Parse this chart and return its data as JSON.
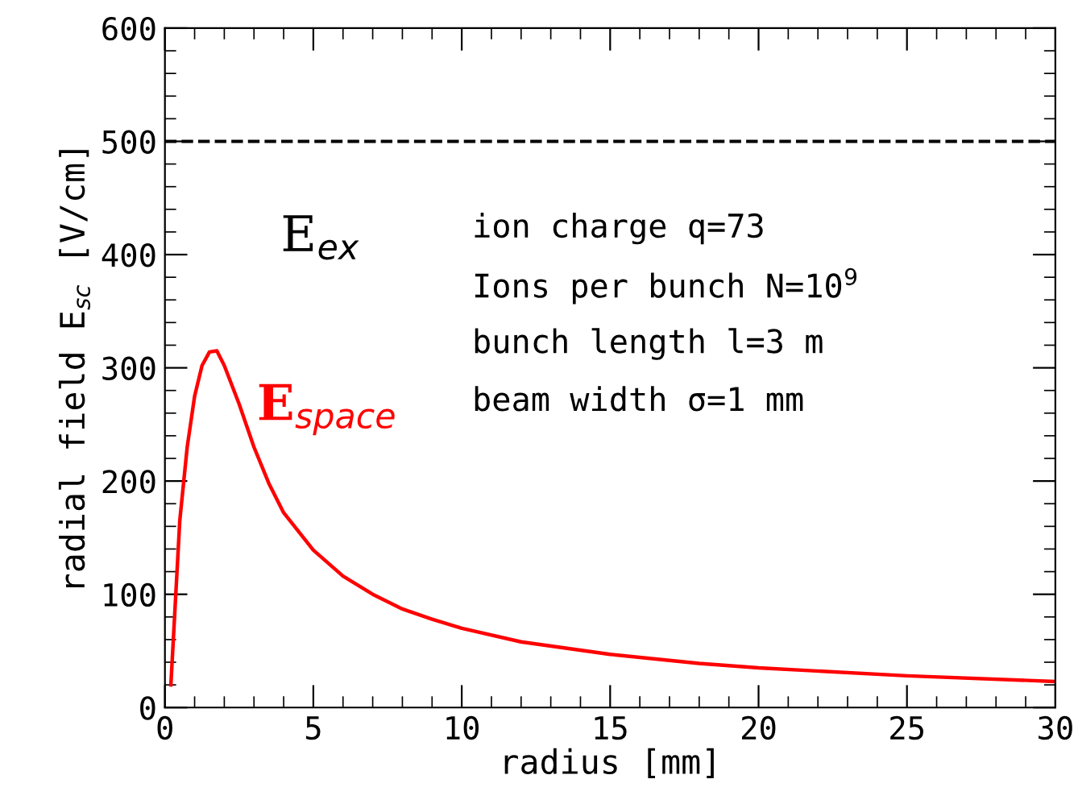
{
  "chart_data": {
    "type": "line",
    "xlabel": "radius [mm]",
    "ylabel": "radial field E$_{sc}$ [V/cm]",
    "xlim": [
      0,
      30
    ],
    "ylim": [
      0,
      600
    ],
    "xticks": [
      0,
      5,
      10,
      15,
      20,
      25,
      30
    ],
    "yticks": [
      0,
      100,
      200,
      300,
      400,
      500,
      600
    ],
    "series": [
      {
        "name": "E$_{space}$",
        "color": "#ff0000",
        "x": [
          0.2,
          0.5,
          0.75,
          1,
          1.25,
          1.5,
          1.75,
          2,
          2.5,
          3,
          3.5,
          4,
          5,
          6,
          7,
          8,
          9,
          10,
          12,
          15,
          18,
          20,
          25,
          30
        ],
        "values": [
          20,
          165,
          230,
          275,
          302,
          314,
          315,
          302,
          268,
          230,
          198,
          172,
          139,
          116,
          100,
          87,
          78,
          70,
          58,
          47,
          39,
          35,
          28,
          23
        ]
      }
    ],
    "ref_lines": [
      {
        "axis": "y",
        "value": 500,
        "label": "E$_{ex}$",
        "color": "#000000",
        "line_style": "dashed"
      }
    ],
    "annotations": [
      "ion charge q=73",
      "Ions per bunch N=10$^{9}$",
      "bunch length l=3 m",
      "beam width σ=1 mm"
    ],
    "grid": false,
    "legend": false,
    "line_style": "solid",
    "marker": "none"
  }
}
